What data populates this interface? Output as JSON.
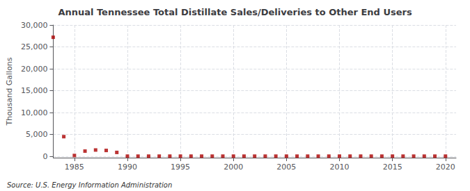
{
  "chart_data": {
    "type": "scatter",
    "title": "Annual Tennessee Total Distillate Sales/Deliveries to Other End Users",
    "ylabel": "Thousand Gallons",
    "annotation": "Source: U.S. Energy Information Administration",
    "color": "#aa0000",
    "marker": "square",
    "grid": true,
    "xlim": [
      1983,
      2021
    ],
    "xticks": [
      1985,
      1990,
      1995,
      2000,
      2005,
      2010,
      2015,
      2020
    ],
    "ylim": [
      -300,
      30000
    ],
    "yticks": [
      0,
      {
        "value": 5000,
        "label": "5,000"
      },
      {
        "value": 10000,
        "label": "10,000"
      },
      {
        "value": 15000,
        "label": "15,000"
      },
      {
        "value": 20000,
        "label": "20,000"
      },
      {
        "value": 25000,
        "label": "25,000"
      },
      {
        "value": 30000,
        "label": "30,000"
      }
    ],
    "x": [
      1983,
      1984,
      1985,
      1986,
      1987,
      1988,
      1989,
      1990,
      1991,
      1992,
      1993,
      1994,
      1995,
      1996,
      1997,
      1998,
      1999,
      2000,
      2001,
      2002,
      2003,
      2004,
      2005,
      2006,
      2007,
      2008,
      2009,
      2010,
      2011,
      2012,
      2013,
      2014,
      2015,
      2016,
      2017,
      2018,
      2019,
      2020
    ],
    "values": [
      27200,
      4500,
      200,
      1200,
      1450,
      1350,
      900,
      50,
      50,
      50,
      50,
      50,
      50,
      50,
      50,
      50,
      50,
      50,
      50,
      50,
      50,
      50,
      50,
      50,
      50,
      50,
      50,
      50,
      50,
      50,
      50,
      50,
      50,
      50,
      50,
      50,
      50,
      50
    ]
  }
}
